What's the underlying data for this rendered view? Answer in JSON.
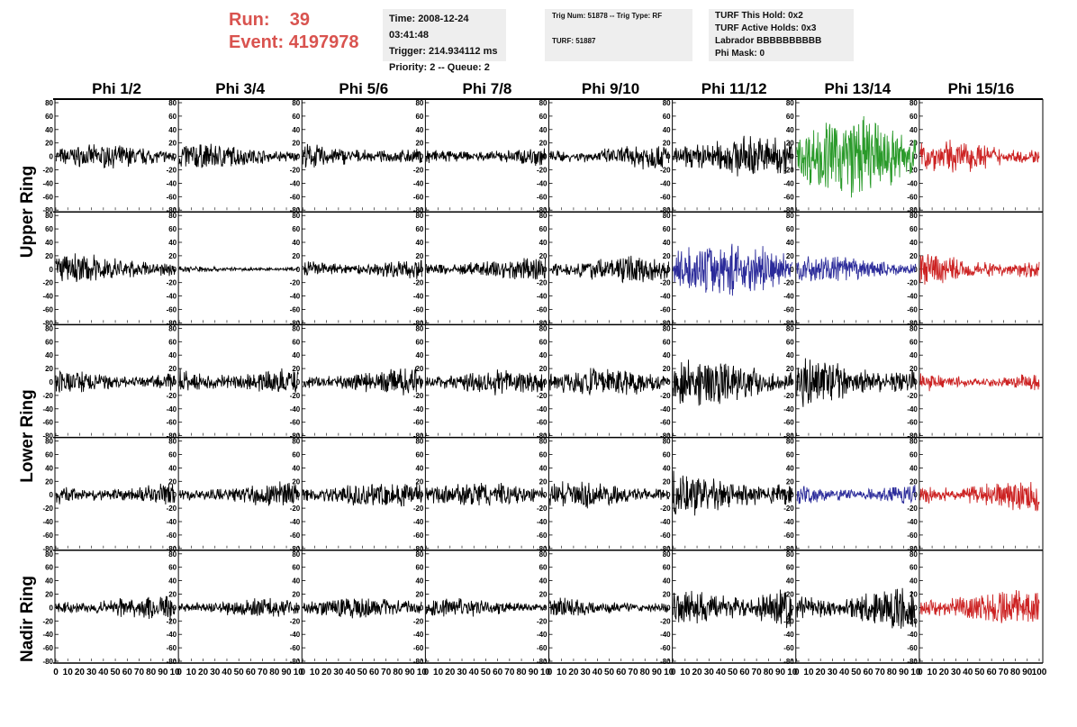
{
  "header": {
    "run_label": "Run:",
    "run_value": "39",
    "event_label": "Event:",
    "event_value": "4197978"
  },
  "info_box_1": {
    "line1": "Time: 2008-12-24 03:41:48",
    "line2": "Trigger: 214.934112 ms",
    "line3": "Priority: 2 -- Queue: 2"
  },
  "info_box_2": {
    "line1": "Trig Num: 51878 -- Trig Type: RF",
    "line2": "TURF: 51887"
  },
  "info_box_3": {
    "line1": "TURF This Hold: 0x2",
    "line2": "TURF Active Holds: 0x3",
    "line3": "Labrador BBBBBBBBBB",
    "line4": "Phi Mask: 0"
  },
  "colors": {
    "black": "#000000",
    "green": "#2a9a2a",
    "blue": "#2b2b9a",
    "red": "#cc2222",
    "header_red": "#d9534f"
  },
  "chart_data": {
    "type": "line",
    "columns": [
      "Phi 1/2",
      "Phi 3/4",
      "Phi 5/6",
      "Phi 7/8",
      "Phi 9/10",
      "Phi 11/12",
      "Phi 13/14",
      "Phi 15/16"
    ],
    "row_labels": [
      "Upper Ring",
      "Lower Ring",
      "Nadir Ring"
    ],
    "ylim": [
      -80,
      80
    ],
    "xlim": [
      0,
      100
    ],
    "y_ticks": [
      -80,
      -60,
      -40,
      -20,
      0,
      20,
      40,
      60,
      80
    ],
    "x_tick_labels_left": [
      "0",
      "10",
      "20",
      "30",
      "40",
      "50",
      "60",
      "70",
      "80",
      "90",
      "10"
    ],
    "x_tick_labels_last": [
      "0",
      "10",
      "20",
      "30",
      "40",
      "50",
      "60",
      "70",
      "80",
      "90",
      "100"
    ],
    "trace_colors": [
      [
        "black",
        "black",
        "black",
        "black",
        "black",
        "black",
        "green",
        "red"
      ],
      [
        "black",
        "black",
        "black",
        "black",
        "black",
        "blue",
        "blue",
        "red"
      ],
      [
        "black",
        "black",
        "black",
        "black",
        "black",
        "black",
        "black",
        "red"
      ],
      [
        "black",
        "black",
        "black",
        "black",
        "black",
        "black",
        "blue",
        "red"
      ],
      [
        "black",
        "black",
        "black",
        "black",
        "black",
        "black",
        "black",
        "red"
      ]
    ],
    "trace_amplitudes": [
      [
        12,
        14,
        14,
        12,
        14,
        22,
        42,
        17
      ],
      [
        16,
        4,
        14,
        14,
        14,
        28,
        14,
        17
      ],
      [
        15,
        18,
        15,
        14,
        15,
        25,
        27,
        12
      ],
      [
        14,
        14,
        14,
        13,
        14,
        24,
        14,
        18
      ],
      [
        14,
        10,
        11,
        10,
        11,
        28,
        24,
        18
      ]
    ]
  }
}
